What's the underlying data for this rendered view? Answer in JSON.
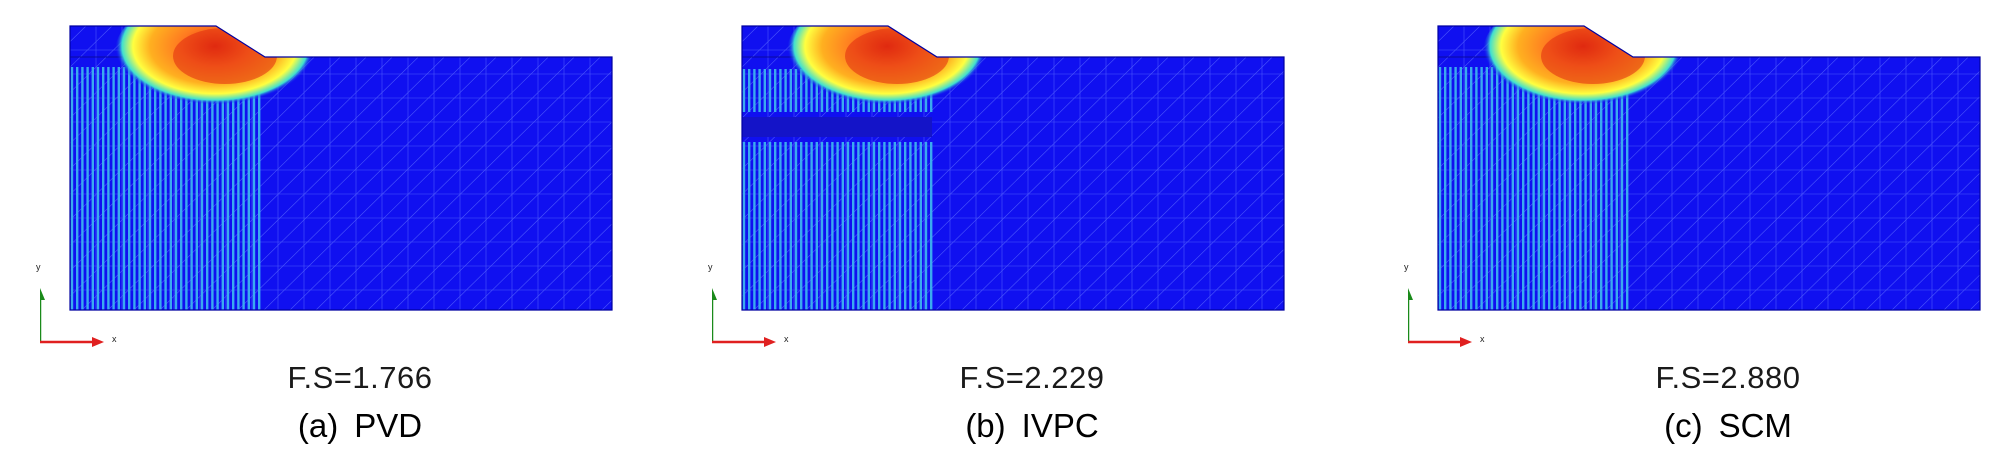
{
  "colors": {
    "soil": "#1010f0",
    "drain": "#3aaaf0",
    "mesh": "#5f6fff",
    "slip_outer": "#ffff40",
    "slip_mid": "#ff7a20",
    "slip_core": "#e02a10",
    "axis_y": "#1a8a1a",
    "axis_x": "#e02020"
  },
  "panels": [
    {
      "id": "pvd",
      "fs": "F.S=1.766",
      "label": "(a)",
      "method": "PVD",
      "axis_x": "x",
      "axis_y": "y"
    },
    {
      "id": "ivpc",
      "fs": "F.S=2.229",
      "label": "(b)",
      "method": "IVPC",
      "axis_x": "x",
      "axis_y": "y"
    },
    {
      "id": "scm",
      "fs": "F.S=2.880",
      "label": "(c)",
      "method": "SCM",
      "axis_x": "x",
      "axis_y": "y"
    }
  ]
}
